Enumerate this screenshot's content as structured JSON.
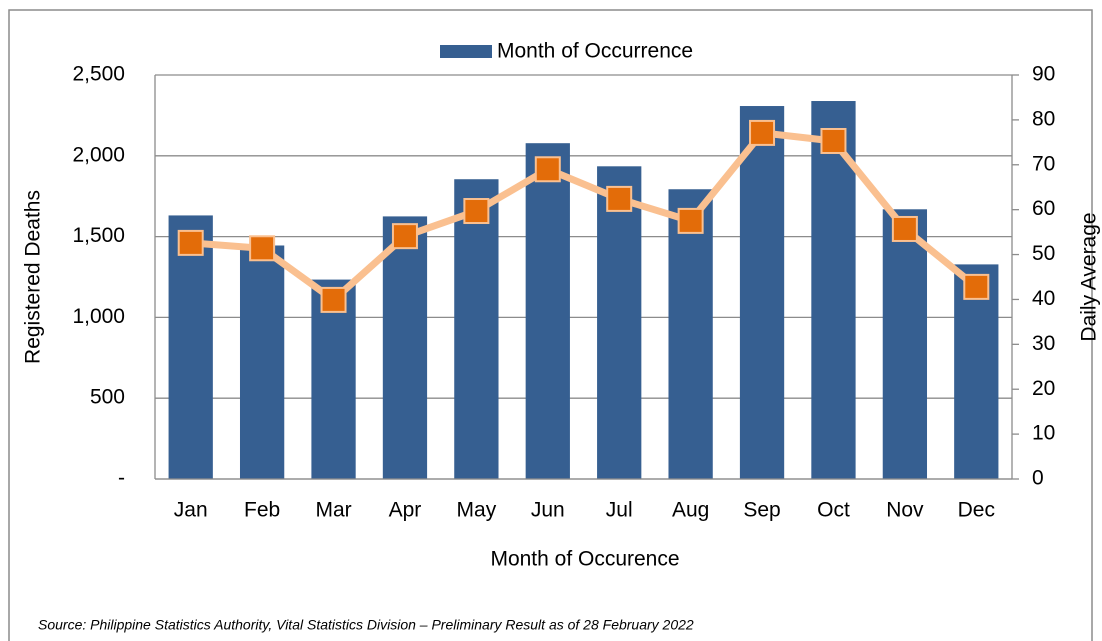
{
  "chart_data": {
    "type": "bar_line",
    "legend_label": "Month of Occurrence",
    "x_label": "Month of Occurence",
    "y_label": "Registered Deaths",
    "y2_label": "Daily Average",
    "source": "Source:  Philippine Statistics Authority, Vital Statistics Division – Preliminary Result as of 28 February 2022",
    "categories": [
      "Jan",
      "Feb",
      "Mar",
      "Apr",
      "May",
      "Jun",
      "Jul",
      "Aug",
      "Sep",
      "Oct",
      "Nov",
      "Dec"
    ],
    "series": [
      {
        "name": "Month of Occurrence",
        "type": "bar",
        "color": "#365f91",
        "values": [
          1631,
          1445,
          1234,
          1625,
          1855,
          2078,
          1935,
          1793,
          2308,
          2339,
          1669,
          1328
        ]
      },
      {
        "type": "line",
        "axis": "y2",
        "color": "#fac090",
        "marker_color": "#e36c09",
        "values": [
          52.6,
          51.4,
          39.9,
          54.1,
          59.7,
          69.0,
          62.4,
          57.5,
          77.1,
          75.3,
          55.7,
          42.8
        ]
      }
    ],
    "ylim": [
      0,
      2500
    ],
    "yticks": [
      {
        "value": 0,
        "label": "-"
      },
      500,
      {
        "value": 1000,
        "label": "1,000"
      },
      {
        "value": 1500,
        "label": "1,500"
      },
      {
        "value": 2000,
        "label": "2,000"
      },
      {
        "value": 2500,
        "label": "2,500"
      }
    ],
    "y2lim": [
      0,
      90
    ],
    "y2ticks": [
      0,
      10,
      20,
      30,
      40,
      50,
      60,
      70,
      80,
      90
    ],
    "grid": true
  }
}
